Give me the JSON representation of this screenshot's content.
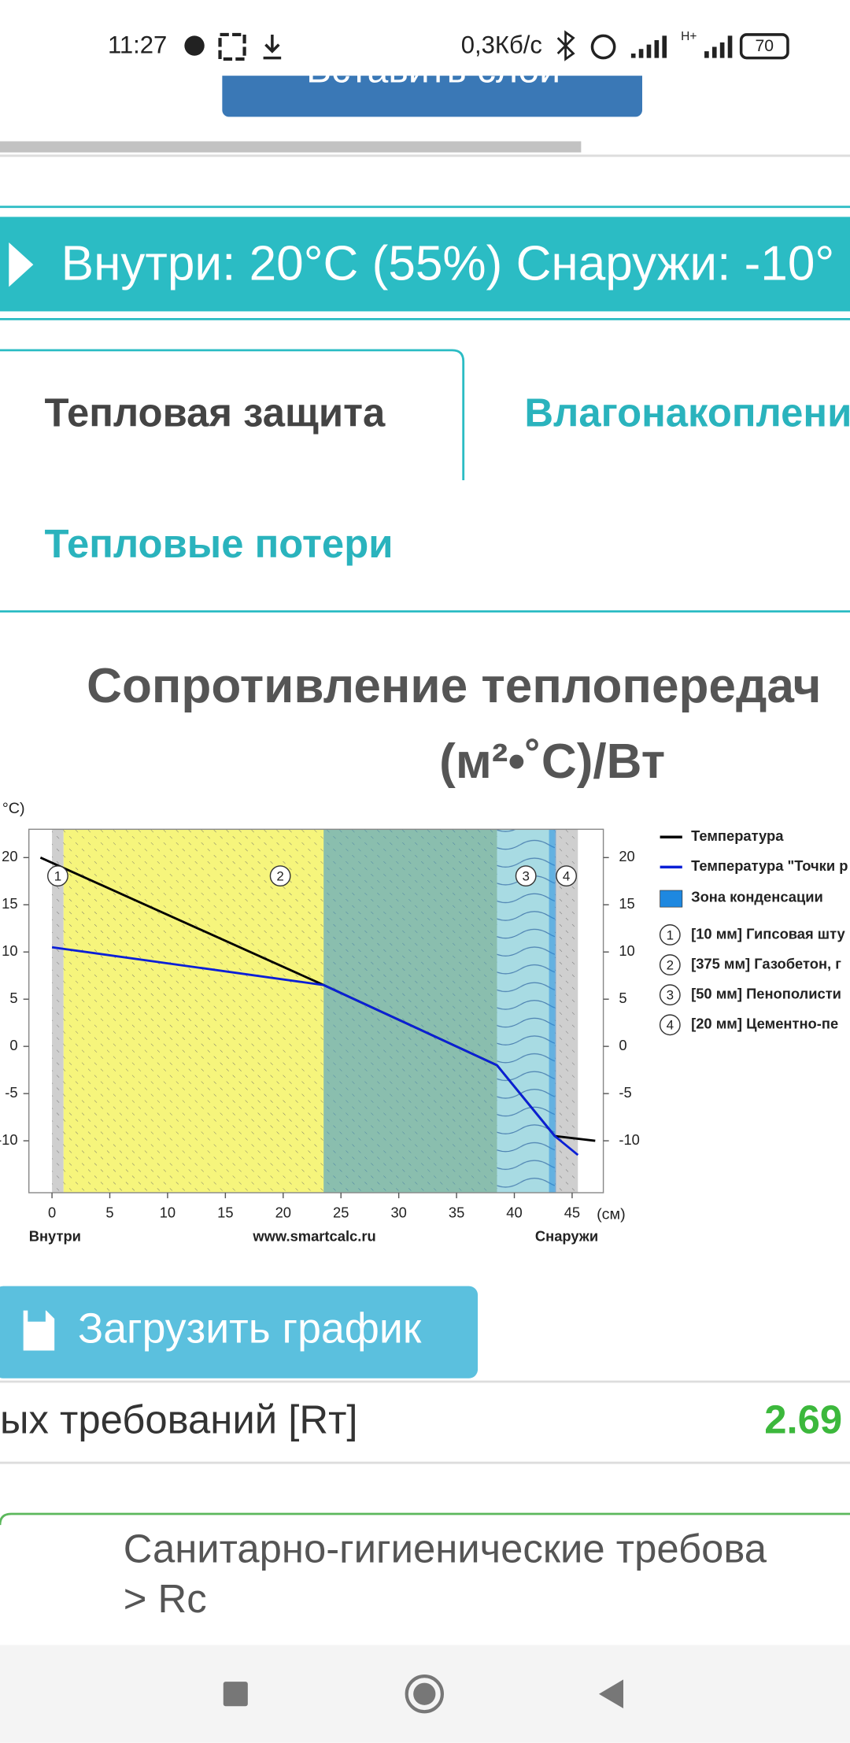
{
  "status_bar": {
    "time": "11:27",
    "speed": "0,3Кб/с",
    "network": "H+",
    "battery": "70"
  },
  "top_button": "Вставить слои",
  "banner": "Внутри: 20°C (55%) Снаружи: -10°",
  "tabs": [
    "Тепловая защита",
    "Влагонакоплени",
    "Тепловые потери"
  ],
  "heading": [
    "Сопротивление теплопередач",
    "(м²•˚С)/Вт"
  ],
  "chart_data": {
    "type": "line",
    "y_axis_label": "°C)",
    "x_axis_label": "(см)",
    "left_label": "Внутри",
    "center_label": "www.smartcalc.ru",
    "right_label": "Снаружи",
    "xlim": [
      -2,
      47.7
    ],
    "ylim": [
      -15.5,
      23
    ],
    "xticks": [
      0,
      5,
      10,
      15,
      20,
      25,
      30,
      35,
      40,
      45
    ],
    "yticks": [
      -10,
      -5,
      0,
      5,
      10,
      15,
      20
    ],
    "series": [
      {
        "name": "Температура",
        "color": "#000000",
        "x": [
          -1,
          23.5,
          38.5,
          43.5,
          47
        ],
        "values": [
          20,
          6.5,
          -2,
          -9.5,
          -10
        ]
      },
      {
        "name": "Температура \"Точки р",
        "color": "#0a1fd6",
        "x": [
          0,
          23.5,
          38.5,
          43.5,
          45.5
        ],
        "values": [
          10.5,
          6.5,
          -2,
          -9.5,
          -11.5
        ]
      }
    ],
    "condensation": {
      "name": "Зона конденсации",
      "color": "#1e88e0",
      "zones": [
        [
          23.5,
          38.5
        ],
        [
          43,
          43.6
        ]
      ]
    },
    "layers": [
      {
        "number": "1",
        "label": "[10 мм] Гипсовая шту",
        "x": [
          0,
          1
        ],
        "color": "#cfcfcf"
      },
      {
        "number": "2",
        "label": "[375 мм] Газобетон, г",
        "x": [
          1,
          38.5
        ],
        "color": "#f6f57c"
      },
      {
        "number": "3",
        "label": "[50 мм] Пенополисти",
        "x": [
          38.5,
          43.5
        ],
        "color": "#a8dbe3"
      },
      {
        "number": "4",
        "label": "[20 мм] Цементно-пе",
        "x": [
          43.5,
          45.5
        ],
        "color": "#cfcfcf"
      }
    ]
  },
  "download_button": "Загрузить график",
  "result_row": {
    "label": "ых требований [Rт]",
    "value": "2.69"
  },
  "next_card": [
    "Санитарно-гигиенические требова",
    "> Rc"
  ]
}
